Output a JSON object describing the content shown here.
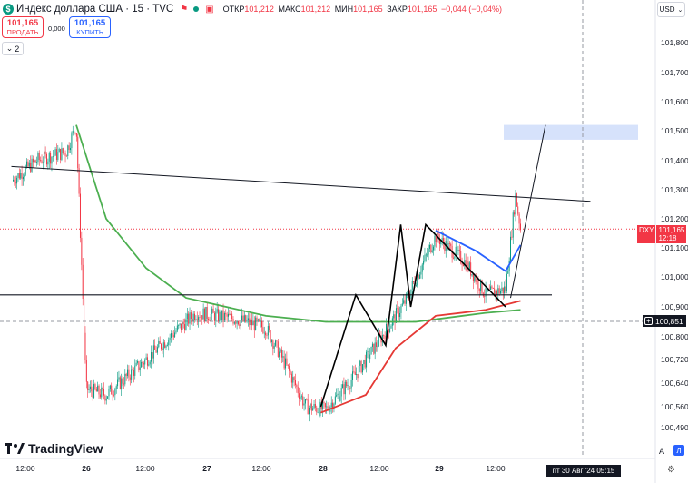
{
  "header": {
    "logo_symbol": "$",
    "title": "Индекс доллара США · 15 · TVC",
    "icons": [
      "flag-icon",
      "market-dots-icon",
      "replay-icon"
    ],
    "ohlc": {
      "open_label": "ОТКР",
      "open_value": "101,212",
      "high_label": "МАКС",
      "high_value": "101,212",
      "low_label": "МИН",
      "low_value": "101,165",
      "close_label": "ЗАКР",
      "close_value": "101,165",
      "change": "−0,044 (−0,04%)"
    }
  },
  "trade": {
    "sell_price": "101,165",
    "sell_label": "ПРОДАТЬ",
    "spread": "0,000",
    "buy_price": "101,165",
    "buy_label": "КУПИТЬ"
  },
  "indicators_collapse": {
    "count": "2"
  },
  "currency_selector": {
    "value": "USD"
  },
  "price_axis": {
    "ticks": [
      "101,800",
      "101,700",
      "101,600",
      "101,500",
      "101,400",
      "101,300",
      "101,200",
      "101,100",
      "101,000",
      "100,900",
      "100,800",
      "100,720",
      "100,640",
      "100,560",
      "100,490"
    ],
    "current_ticker": "DXY",
    "current_price": "101,165",
    "countdown": "12:18",
    "crosshair_price": "100,851"
  },
  "time_axis": {
    "ticks": [
      "12:00",
      "26",
      "12:00",
      "27",
      "12:00",
      "28",
      "12:00",
      "29",
      "12:00"
    ],
    "crosshair_date": "пт 30 Авг '24   05:15"
  },
  "branding": {
    "name": "TradingView"
  },
  "controls": {
    "auto_label": "A",
    "log_label": "Л"
  },
  "colors": {
    "up": "#089981",
    "down": "#f23645",
    "ma_green": "#4caf50",
    "ma_blue": "#2962ff",
    "ma_red": "#e53935",
    "zone": "#d6e2fb",
    "drawing": "#000000"
  },
  "chart_data": {
    "type": "candlestick",
    "timeframe": "15",
    "y_range": [
      100.49,
      101.85
    ],
    "x_ticks": [
      "12:00",
      "26",
      "12:00",
      "27",
      "12:00",
      "28",
      "12:00",
      "29",
      "12:00"
    ],
    "close_path": [
      {
        "x": "25 Aug 09:00",
        "y": 101.33
      },
      {
        "x": "25 Aug 14:00",
        "y": 101.4
      },
      {
        "x": "25 Aug 20:00",
        "y": 101.43
      },
      {
        "x": "25 Aug 22:00",
        "y": 101.52
      },
      {
        "x": "26 Aug 00:00",
        "y": 100.62
      },
      {
        "x": "26 Aug 04:00",
        "y": 100.6
      },
      {
        "x": "26 Aug 12:00",
        "y": 100.72
      },
      {
        "x": "26 Aug 18:00",
        "y": 100.82
      },
      {
        "x": "26 Aug 22:00",
        "y": 100.88
      },
      {
        "x": "27 Aug 06:00",
        "y": 100.86
      },
      {
        "x": "27 Aug 12:00",
        "y": 100.83
      },
      {
        "x": "27 Aug 16:00",
        "y": 100.7
      },
      {
        "x": "27 Aug 20:00",
        "y": 100.56
      },
      {
        "x": "28 Aug 00:00",
        "y": 100.55
      },
      {
        "x": "28 Aug 06:00",
        "y": 100.67
      },
      {
        "x": "28 Aug 12:00",
        "y": 100.82
      },
      {
        "x": "28 Aug 16:00",
        "y": 100.92
      },
      {
        "x": "28 Aug 22:00",
        "y": 101.14
      },
      {
        "x": "29 Aug 04:00",
        "y": 101.05
      },
      {
        "x": "29 Aug 08:00",
        "y": 100.94
      },
      {
        "x": "29 Aug 12:00",
        "y": 100.96
      },
      {
        "x": "29 Aug 14:00",
        "y": 101.28
      },
      {
        "x": "29 Aug 15:00",
        "y": 101.165
      }
    ],
    "moving_averages": [
      {
        "color": "green",
        "points": [
          {
            "x": "25 Aug 22:00",
            "y": 101.52
          },
          {
            "x": "26 Aug 04:00",
            "y": 101.2
          },
          {
            "x": "26 Aug 12:00",
            "y": 101.03
          },
          {
            "x": "26 Aug 20:00",
            "y": 100.93
          },
          {
            "x": "27 Aug 12:00",
            "y": 100.87
          },
          {
            "x": "28 Aug 00:00",
            "y": 100.85
          },
          {
            "x": "28 Aug 18:00",
            "y": 100.85
          },
          {
            "x": "29 Aug 08:00",
            "y": 100.88
          },
          {
            "x": "29 Aug 15:00",
            "y": 100.89
          }
        ]
      },
      {
        "color": "red",
        "points": [
          {
            "x": "27 Aug 23:00",
            "y": 100.54
          },
          {
            "x": "28 Aug 08:00",
            "y": 100.6
          },
          {
            "x": "28 Aug 14:00",
            "y": 100.76
          },
          {
            "x": "28 Aug 22:00",
            "y": 100.87
          },
          {
            "x": "29 Aug 08:00",
            "y": 100.89
          },
          {
            "x": "29 Aug 15:00",
            "y": 100.92
          }
        ]
      },
      {
        "color": "blue",
        "points": [
          {
            "x": "28 Aug 22:00",
            "y": 101.16
          },
          {
            "x": "29 Aug 06:00",
            "y": 101.09
          },
          {
            "x": "29 Aug 12:00",
            "y": 101.02
          },
          {
            "x": "29 Aug 15:00",
            "y": 101.11
          }
        ]
      }
    ],
    "drawings": {
      "descending_trendline": [
        {
          "x": "25 Aug 09:00",
          "y": 101.38
        },
        {
          "x": "30 Aug 05:00",
          "y": 101.26
        }
      ],
      "horizontal_level": 100.94,
      "zigzag": [
        {
          "x": "27 Aug 23:00",
          "y": 100.56
        },
        {
          "x": "28 Aug 06:00",
          "y": 100.94
        },
        {
          "x": "28 Aug 12:00",
          "y": 100.77
        },
        {
          "x": "28 Aug 15:00",
          "y": 101.18
        },
        {
          "x": "28 Aug 17:00",
          "y": 100.9
        },
        {
          "x": "28 Aug 20:00",
          "y": 101.18
        },
        {
          "x": "29 Aug 12:00",
          "y": 100.9
        }
      ],
      "projection_line": [
        {
          "x": "29 Aug 13:00",
          "y": 100.93
        },
        {
          "x": "29 Aug 20:00",
          "y": 101.52
        }
      ],
      "target_zone": [
        101.47,
        101.52
      ]
    }
  }
}
